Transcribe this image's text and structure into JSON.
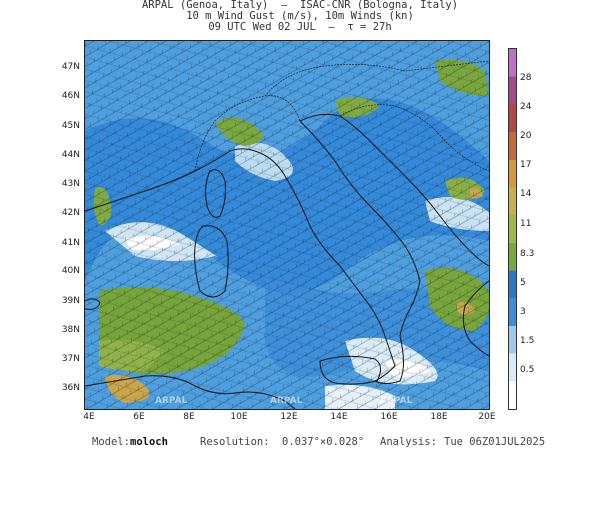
{
  "header": {
    "line1": "ARPAL (Genoa, Italy)  –  ISAC-CNR (Bologna, Italy)",
    "line2": "10 m Wind Gust (m/s), 10m Winds (kn)",
    "line3": "09 UTC Wed 02 JUL  –  τ = 27h"
  },
  "map": {
    "lat_labels": [
      "47N",
      "46N",
      "45N",
      "44N",
      "43N",
      "42N",
      "41N",
      "40N",
      "39N",
      "38N",
      "37N",
      "36N"
    ],
    "lon_labels": [
      "4E",
      "6E",
      "8E",
      "10E",
      "12E",
      "14E",
      "16E",
      "18E",
      "20E"
    ],
    "watermark": "ARPAL",
    "colors": {
      "low": "#ffffff",
      "light_blue": "#b8d8f0",
      "mid_blue": "#5aa8e0",
      "deep_blue": "#2f7fd4",
      "green": "#7aa63c",
      "ochre": "#c9a64b",
      "coast": "#1a1a1a"
    }
  },
  "colorbar": {
    "ticks": [
      "28",
      "24",
      "20",
      "17",
      "14",
      "11",
      "8.3",
      "5",
      "3",
      "1.5",
      "0.5"
    ],
    "colors": [
      "#ffffff",
      "#d8ecf8",
      "#9cc9ee",
      "#3c8ed8",
      "#2a78cc",
      "#78a83e",
      "#9fb84c",
      "#c8b04c",
      "#d39a3c",
      "#c46a3a",
      "#b04848",
      "#a04a8c",
      "#c070c8"
    ]
  },
  "footer": {
    "model_label": "Model:",
    "model_value": "moloch",
    "resolution_label": "Resolution:",
    "resolution_value": "0.037°×0.028°",
    "analysis_label": "Analysis:",
    "analysis_value": "Tue 06Z01JUL2025"
  }
}
